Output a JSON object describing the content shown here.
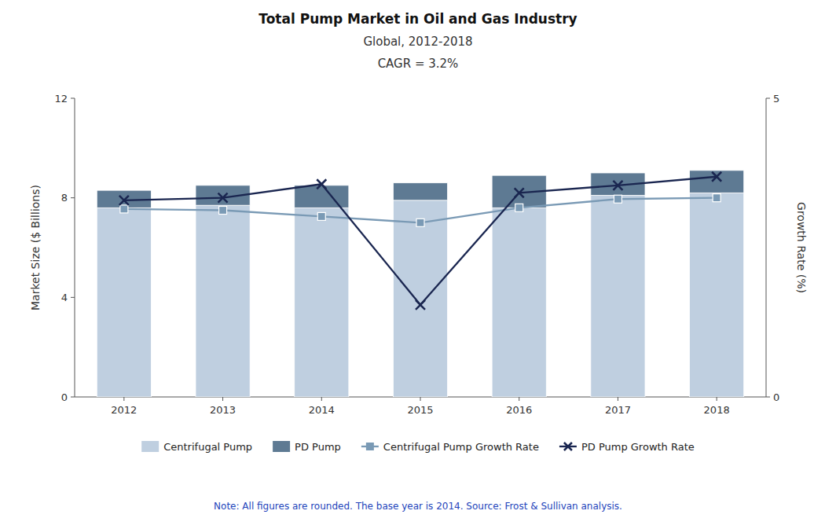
{
  "chart_data": {
    "type": "bar",
    "title": "Total Pump Market in Oil and Gas Industry",
    "subtitle": "Global, 2012-2018",
    "annotations": [
      "CAGR = 3.2%",
      "Note: All figures are rounded. The base year is 2014. Source: Frost & Sullivan analysis."
    ],
    "categories": [
      "2012",
      "2013",
      "2014",
      "2015",
      "2016",
      "2017",
      "2018"
    ],
    "stacked": true,
    "series": [
      {
        "name": "Centrifugal Pump",
        "type": "bar",
        "color": "#bfcfe0",
        "values": [
          7.6,
          7.7,
          7.6,
          7.9,
          7.6,
          8.1,
          8.2
        ]
      },
      {
        "name": "PD Pump",
        "type": "bar",
        "color": "#5e7a93",
        "values": [
          0.7,
          0.8,
          0.9,
          0.7,
          1.3,
          0.9,
          0.9
        ]
      },
      {
        "name": "Centrifugal Pump Growth Rate",
        "type": "line",
        "color": "#7a9ab5",
        "marker": "square",
        "values": [
          7.55,
          7.5,
          7.25,
          7.0,
          7.6,
          7.95,
          8.0
        ]
      },
      {
        "name": "PD Pump Growth Rate",
        "type": "line",
        "color": "#1a2650",
        "marker": "x",
        "values": [
          7.9,
          8.0,
          8.55,
          3.7,
          8.2,
          8.5,
          8.85
        ]
      }
    ],
    "ylabel": "Market Size ($ Billions)",
    "ylim": [
      0,
      12
    ],
    "yticks": [
      0,
      4,
      8,
      12
    ],
    "y2label": "Growth Rate (%)",
    "y2lim": [
      0,
      5
    ],
    "y2ticks": [
      0,
      5
    ],
    "grid": false,
    "legend": "bottom"
  }
}
